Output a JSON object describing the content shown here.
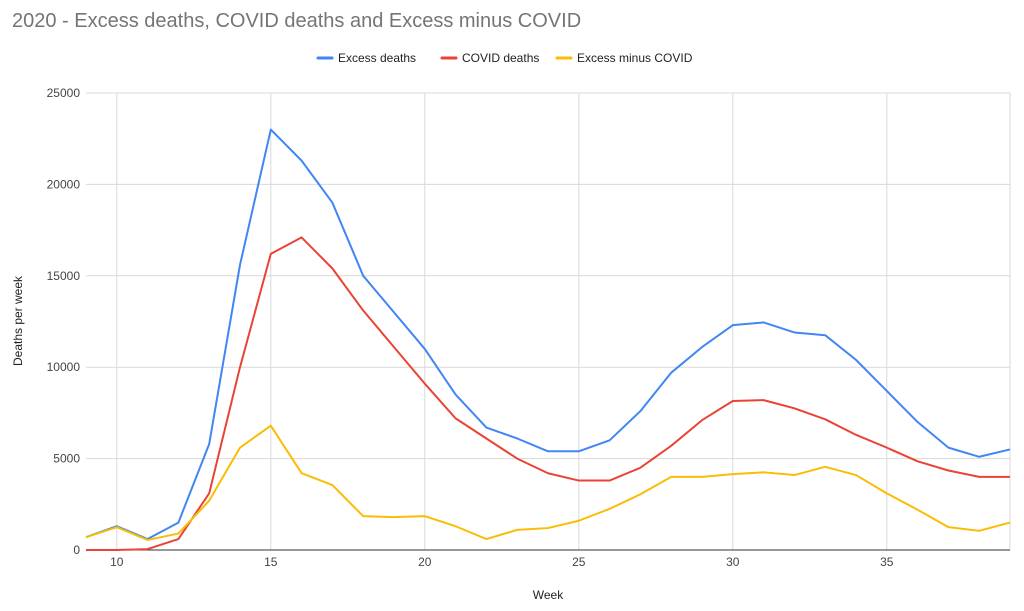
{
  "chart_data": {
    "type": "line",
    "title": "2020 - Excess deaths, COVID deaths and Excess minus COVID",
    "xlabel": "Week",
    "ylabel": "Deaths per week",
    "xlim": [
      9,
      39
    ],
    "ylim": [
      0,
      25000
    ],
    "xticks": [
      10,
      15,
      20,
      25,
      30,
      35
    ],
    "yticks": [
      0,
      5000,
      10000,
      15000,
      20000,
      25000
    ],
    "grid": true,
    "legend_position": "top-center",
    "x": [
      9,
      10,
      11,
      12,
      13,
      14,
      15,
      16,
      17,
      18,
      19,
      20,
      21,
      22,
      23,
      24,
      25,
      26,
      27,
      28,
      29,
      30,
      31,
      32,
      33,
      34,
      35,
      36,
      37,
      38,
      39
    ],
    "series": [
      {
        "name": "Excess deaths",
        "color": "#4285f4",
        "values": [
          700,
          1300,
          600,
          1500,
          5800,
          15600,
          23000,
          21300,
          19000,
          15000,
          13000,
          11000,
          8500,
          6700,
          6100,
          5400,
          5400,
          6000,
          7600,
          9700,
          11100,
          12300,
          12450,
          11900,
          11750,
          10400,
          8700,
          7000,
          5600,
          5100,
          5500
        ]
      },
      {
        "name": "COVID deaths",
        "color": "#ea4335",
        "values": [
          0,
          0,
          50,
          600,
          3100,
          10000,
          16200,
          17100,
          15400,
          13100,
          11100,
          9100,
          7200,
          6100,
          5000,
          4200,
          3800,
          3800,
          4500,
          5700,
          7100,
          8150,
          8200,
          7750,
          7150,
          6300,
          5600,
          4850,
          4350,
          4000,
          4000
        ]
      },
      {
        "name": "Excess minus COVID",
        "color": "#fbbc04",
        "values": [
          700,
          1250,
          550,
          900,
          2700,
          5600,
          6800,
          4200,
          3550,
          1850,
          1800,
          1850,
          1300,
          600,
          1100,
          1200,
          1600,
          2250,
          3050,
          4000,
          4000,
          4150,
          4250,
          4100,
          4550,
          4100,
          3100,
          2200,
          1250,
          1050,
          1500
        ]
      }
    ]
  }
}
